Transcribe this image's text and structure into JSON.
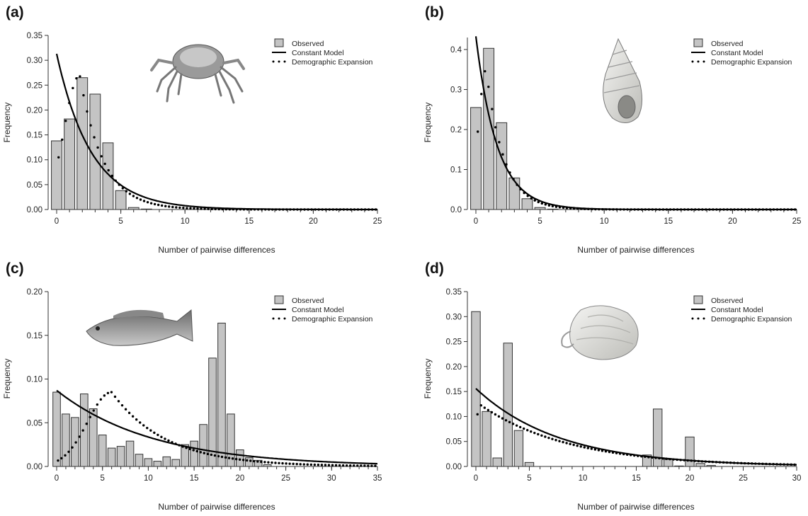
{
  "colors": {
    "bar_fill": "#c4c4c4",
    "bar_stroke": "#333333",
    "line": "#000000"
  },
  "icons": [
    "crab-illustration",
    "snail-shell-illustration",
    "fish-illustration",
    "clam-illustration"
  ],
  "chart_data": [
    {
      "panel": "(a)",
      "type": "bar",
      "xlabel": "Number of pairwise differences",
      "ylabel": "Frequency",
      "xlim": [
        0,
        25
      ],
      "ylim": [
        0,
        0.35
      ],
      "xticks": [
        "0",
        "5",
        "10",
        "15",
        "20",
        "25"
      ],
      "yticks": [
        "0.00",
        "0.05",
        "0.10",
        "0.15",
        "0.20",
        "0.25",
        "0.30",
        "0.35"
      ],
      "legend": [
        "Observed",
        "Constant Model",
        "Demographic Expansion"
      ],
      "legend_position": "top-right",
      "observed": [
        0.138,
        0.182,
        0.265,
        0.232,
        0.134,
        0.038,
        0.004,
        0.001
      ],
      "constant_model": {
        "start": 0.313,
        "decay": 0.37
      },
      "demographic_expansion": {
        "mode": 1.8,
        "peak": 0.27,
        "sigma_left": 1.2,
        "tail_decay": 0.55
      }
    },
    {
      "panel": "(b)",
      "type": "bar",
      "xlabel": "Number of pairwise differences",
      "ylabel": "Frequency",
      "xlim": [
        0,
        25
      ],
      "ylim": [
        0,
        0.43
      ],
      "xticks": [
        "0",
        "5",
        "10",
        "15",
        "20",
        "25"
      ],
      "yticks": [
        "0.0",
        "0.1",
        "0.2",
        "0.3",
        "0.4"
      ],
      "legend": [
        "Observed",
        "Constant Model",
        "Demographic Expansion"
      ],
      "legend_position": "top-right",
      "observed": [
        0.255,
        0.403,
        0.217,
        0.079,
        0.027,
        0.005,
        0.001
      ],
      "constant_model": {
        "start": 0.433,
        "decay": 0.6
      },
      "demographic_expansion": {
        "mode": 0.8,
        "peak": 0.35,
        "sigma_left": 0.6,
        "tail_decay": 0.72
      }
    },
    {
      "panel": "(c)",
      "type": "bar",
      "xlabel": "Number of pairwise differences",
      "ylabel": "Frequency",
      "xlim": [
        0,
        35
      ],
      "ylim": [
        0,
        0.2
      ],
      "xticks": [
        "0",
        "5",
        "10",
        "15",
        "20",
        "25",
        "30",
        "35"
      ],
      "yticks": [
        "0.00",
        "0.05",
        "0.10",
        "0.15",
        "0.20"
      ],
      "legend": [
        "Observed",
        "Constant Model",
        "Demographic Expansion"
      ],
      "legend_position": "top-right",
      "observed": [
        0.085,
        0.06,
        0.056,
        0.083,
        0.066,
        0.036,
        0.021,
        0.023,
        0.029,
        0.014,
        0.009,
        0.006,
        0.011,
        0.008,
        0.025,
        0.029,
        0.048,
        0.124,
        0.164,
        0.06,
        0.019,
        0.01,
        0.007,
        0.002
      ],
      "constant_model": {
        "start": 0.087,
        "decay": 0.095
      },
      "demographic_expansion": {
        "mode": 6.0,
        "peak": 0.085,
        "sigma_left": 2.6,
        "tail_decay": 0.17
      }
    },
    {
      "panel": "(d)",
      "type": "bar",
      "xlabel": "Number of pairwise differences",
      "ylabel": "Frequency",
      "xlim": [
        0,
        30
      ],
      "ylim": [
        0,
        0.35
      ],
      "xticks": [
        "0",
        "5",
        "10",
        "15",
        "20",
        "25",
        "30"
      ],
      "yticks": [
        "0.00",
        "0.05",
        "0.10",
        "0.15",
        "0.20",
        "0.25",
        "0.30",
        "0.35"
      ],
      "legend": [
        "Observed",
        "Constant Model",
        "Demographic Expansion"
      ],
      "legend_position": "top-right",
      "observed": [
        0.31,
        0.11,
        0.017,
        0.247,
        0.072,
        0.008,
        0,
        0,
        0,
        0,
        0,
        0,
        0,
        0,
        0,
        0,
        0.023,
        0.115,
        0.014,
        0.001,
        0.059,
        0.006,
        0.002
      ],
      "constant_model": {
        "start": 0.156,
        "decay": 0.128
      },
      "demographic_expansion": {
        "mode": 0.3,
        "peak": 0.125,
        "sigma_left": 0.25,
        "tail_decay": 0.12
      }
    }
  ]
}
